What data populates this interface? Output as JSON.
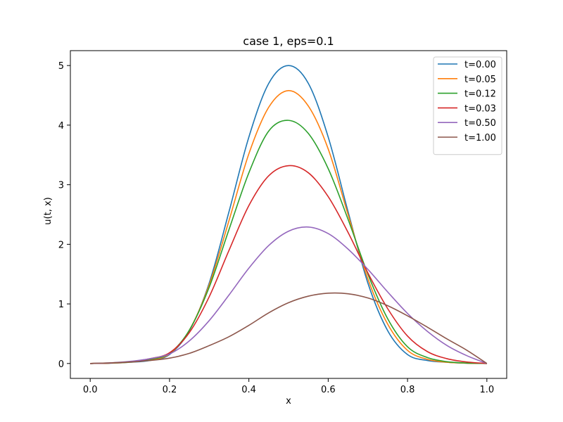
{
  "chart_data": {
    "type": "line",
    "title": "case 1, eps=0.1",
    "xlabel": "x",
    "ylabel": "u(t, x)",
    "xlim": [
      -0.05,
      1.05
    ],
    "ylim": [
      -0.25,
      5.25
    ],
    "xticks": [
      "0.0",
      "0.2",
      "0.4",
      "0.6",
      "0.8",
      "1.0"
    ],
    "xtick_values": [
      0.0,
      0.2,
      0.4,
      0.6,
      0.8,
      1.0
    ],
    "yticks": [
      "0",
      "1",
      "2",
      "3",
      "4",
      "5"
    ],
    "ytick_values": [
      0,
      1,
      2,
      3,
      4,
      5
    ],
    "grid": false,
    "legend_position": "top-right",
    "x": [
      0.0,
      0.05,
      0.1,
      0.15,
      0.2,
      0.25,
      0.3,
      0.35,
      0.4,
      0.45,
      0.5,
      0.55,
      0.6,
      0.65,
      0.7,
      0.75,
      0.8,
      0.85,
      0.9,
      0.95,
      1.0
    ],
    "series": [
      {
        "name": "t=0.00",
        "color": "#1f77b4",
        "values": [
          0.0,
          0.005,
          0.02,
          0.05,
          0.15,
          0.55,
          1.35,
          2.55,
          3.8,
          4.7,
          5.0,
          4.7,
          3.8,
          2.55,
          1.35,
          0.55,
          0.15,
          0.05,
          0.02,
          0.005,
          0.0
        ]
      },
      {
        "name": "t=0.05",
        "color": "#ff7f0e",
        "values": [
          0.0,
          0.006,
          0.022,
          0.06,
          0.16,
          0.56,
          1.32,
          2.4,
          3.52,
          4.3,
          4.58,
          4.32,
          3.6,
          2.5,
          1.42,
          0.66,
          0.22,
          0.07,
          0.02,
          0.005,
          0.0
        ]
      },
      {
        "name": "t=0.12",
        "color": "#2ca02c",
        "values": [
          0.0,
          0.007,
          0.025,
          0.07,
          0.17,
          0.56,
          1.28,
          2.25,
          3.2,
          3.9,
          4.08,
          3.86,
          3.27,
          2.42,
          1.5,
          0.75,
          0.28,
          0.1,
          0.03,
          0.008,
          0.0
        ]
      },
      {
        "name": "t=0.03",
        "color": "#d62728",
        "values": [
          0.0,
          0.008,
          0.03,
          0.08,
          0.18,
          0.52,
          1.12,
          1.9,
          2.65,
          3.15,
          3.32,
          3.2,
          2.8,
          2.2,
          1.52,
          0.92,
          0.46,
          0.2,
          0.08,
          0.025,
          0.0
        ]
      },
      {
        "name": "t=0.50",
        "color": "#9467bd",
        "values": [
          0.0,
          0.01,
          0.035,
          0.08,
          0.16,
          0.38,
          0.72,
          1.15,
          1.6,
          1.98,
          2.22,
          2.29,
          2.18,
          1.92,
          1.58,
          1.2,
          0.84,
          0.54,
          0.3,
          0.13,
          0.0
        ]
      },
      {
        "name": "t=1.00",
        "color": "#8c564b",
        "values": [
          0.0,
          0.01,
          0.025,
          0.05,
          0.09,
          0.17,
          0.3,
          0.45,
          0.64,
          0.85,
          1.02,
          1.13,
          1.18,
          1.17,
          1.1,
          0.97,
          0.8,
          0.61,
          0.41,
          0.22,
          0.0
        ]
      }
    ]
  }
}
